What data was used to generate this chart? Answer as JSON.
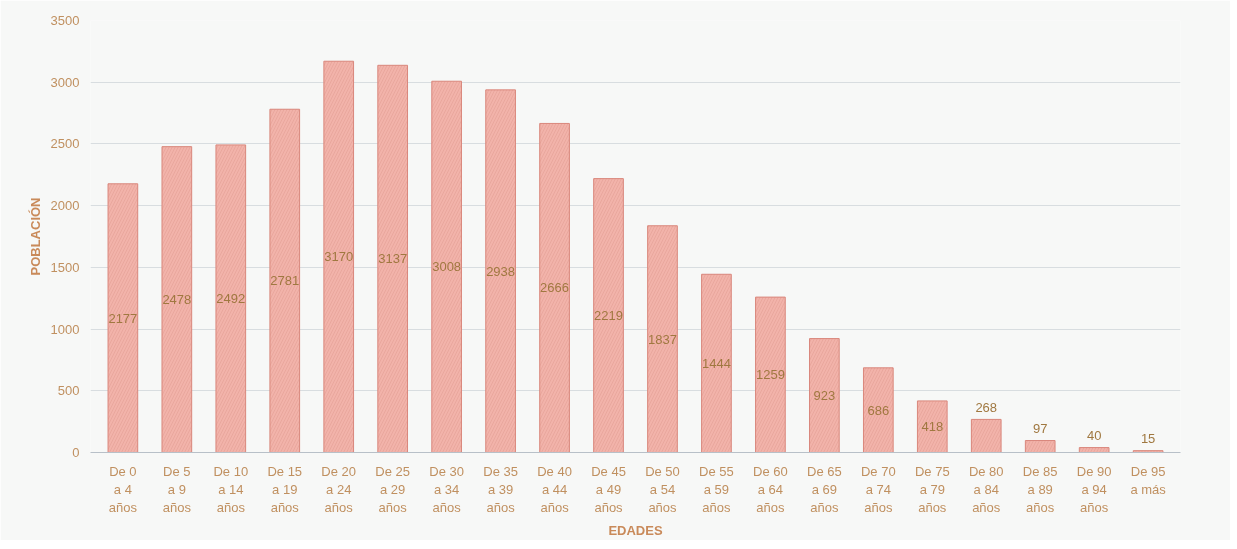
{
  "chart_data": {
    "type": "bar",
    "xlabel": "EDADES",
    "ylabel": "POBLACIÓN",
    "categories": [
      "De 0 a 4 años",
      "De 5 a 9 años",
      "De 10 a 14 años",
      "De 15 a 19 años",
      "De 20 a 24 años",
      "De 25 a 29 años",
      "De 30 a 34 años",
      "De 35 a 39 años",
      "De 40 a 44 años",
      "De 45 a 49 años",
      "De 50 a 54 años",
      "De 55 a 59 años",
      "De 60 a 64 años",
      "De 65 a 69 años",
      "De 70 a 74 años",
      "De 75 a 79 años",
      "De 80 a 84 años",
      "De 85 a 89 años",
      "De 90 a 94 años",
      "De 95 a más"
    ],
    "values": [
      2177,
      2478,
      2492,
      2781,
      3170,
      3137,
      3008,
      2938,
      2666,
      2219,
      1837,
      1444,
      1259,
      923,
      686,
      418,
      268,
      97,
      40,
      15
    ],
    "color": "#f2b3aa",
    "ylim": [
      0,
      3500
    ],
    "yticks": [
      0,
      500,
      1000,
      1500,
      2000,
      2500,
      3000,
      3500
    ],
    "grid": "y",
    "data_labels": true
  }
}
